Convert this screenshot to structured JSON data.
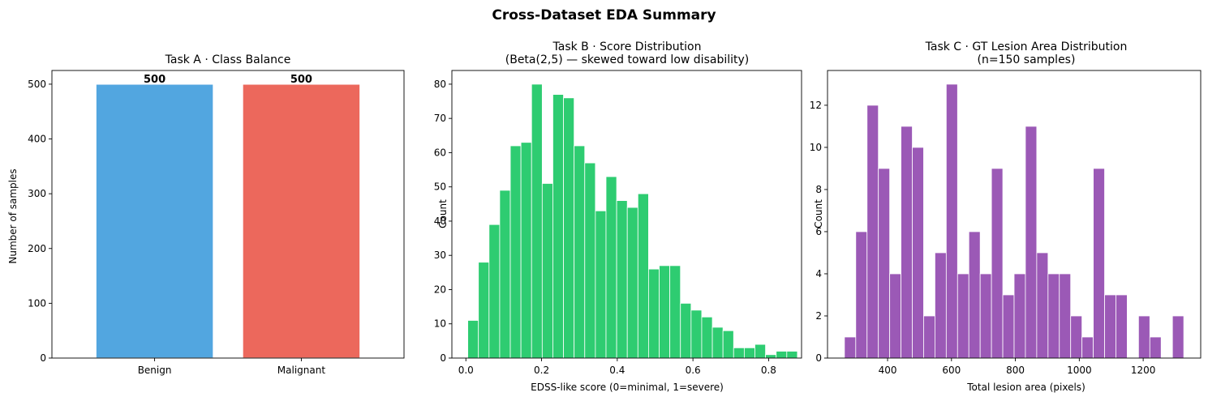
{
  "suptitle": "Cross-Dataset EDA Summary",
  "chart_data": [
    {
      "type": "bar",
      "title": "Task A · Class Balance",
      "xlabel": "",
      "ylabel": "Number of samples",
      "categories": [
        "Benign",
        "Malignant"
      ],
      "values": [
        500,
        500
      ],
      "value_labels": [
        "500",
        "500"
      ],
      "colors": [
        "#52a6e0",
        "#ec685c"
      ],
      "ylim": [
        0,
        525
      ],
      "yticks": [
        0,
        100,
        200,
        300,
        400,
        500
      ],
      "ytick_labels": [
        "0",
        "100",
        "200",
        "300",
        "400",
        "500"
      ]
    },
    {
      "type": "bar",
      "subtype": "histogram",
      "title": "Task B · Score Distribution",
      "subtitle": "(Beta(2,5) — skewed toward low disability)",
      "xlabel": "EDSS-like score (0=minimal, 1=severe)",
      "ylabel": "Count",
      "color": "#2ecc71",
      "bin_start": 0.005,
      "bin_width": 0.0281,
      "counts": [
        11,
        28,
        39,
        49,
        62,
        63,
        80,
        51,
        77,
        76,
        62,
        57,
        43,
        53,
        46,
        44,
        48,
        26,
        27,
        27,
        16,
        14,
        12,
        9,
        8,
        3,
        3,
        4,
        1,
        2,
        2
      ],
      "xlim": [
        -0.037,
        0.887
      ],
      "ylim": [
        0,
        84
      ],
      "xticks": [
        0.0,
        0.2,
        0.4,
        0.6,
        0.8
      ],
      "xtick_labels": [
        "0.0",
        "0.2",
        "0.4",
        "0.6",
        "0.8"
      ],
      "yticks": [
        0,
        10,
        20,
        30,
        40,
        50,
        60,
        70,
        80
      ],
      "ytick_labels": [
        "0",
        "10",
        "20",
        "30",
        "40",
        "50",
        "60",
        "70",
        "80"
      ]
    },
    {
      "type": "bar",
      "subtype": "histogram",
      "title": "Task C · GT Lesion Area Distribution",
      "subtitle": "(n=150 samples)",
      "xlabel": "Total lesion area (pixels)",
      "ylabel": "Count",
      "color": "#9b59b6",
      "bin_start": 265,
      "bin_width": 35.4,
      "counts": [
        1,
        6,
        12,
        9,
        4,
        11,
        10,
        2,
        5,
        13,
        4,
        6,
        4,
        9,
        3,
        4,
        11,
        5,
        4,
        4,
        2,
        1,
        9,
        3,
        3,
        0,
        2,
        1,
        0,
        2
      ],
      "xlim": [
        212,
        1380
      ],
      "ylim": [
        0,
        13.65
      ],
      "xticks": [
        400,
        600,
        800,
        1000,
        1200
      ],
      "xtick_labels": [
        "400",
        "600",
        "800",
        "1000",
        "1200"
      ],
      "yticks": [
        0,
        2,
        4,
        6,
        8,
        10,
        12
      ],
      "ytick_labels": [
        "0",
        "2",
        "4",
        "6",
        "8",
        "10",
        "12"
      ]
    }
  ]
}
